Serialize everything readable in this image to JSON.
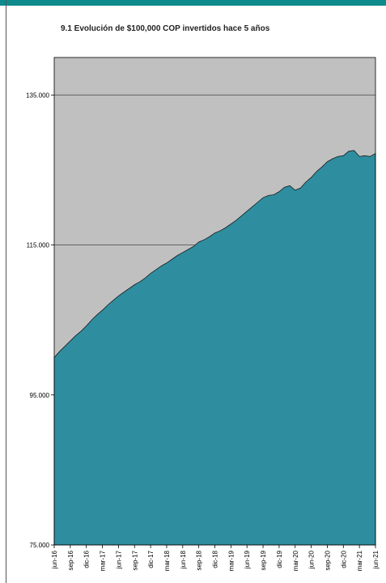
{
  "colors": {
    "top_bar": "#0d8a8c",
    "plot_background": "#c0c0c0",
    "area_fill": "#2e8ea0",
    "area_line": "#1a1a1a"
  },
  "chart_data": {
    "type": "area",
    "title": "9.1 Evolución de $100,000 COP invertidos hace 5 años",
    "xlabel": "",
    "ylabel": "",
    "ylim": [
      75000,
      140000
    ],
    "yticks": [
      75000,
      95000,
      115000,
      135000
    ],
    "ytick_labels": [
      "75.000",
      "95.000",
      "115.000",
      "135.000"
    ],
    "xtick_labels": [
      "jun-16",
      "sep-16",
      "dic-16",
      "mar-17",
      "jun-17",
      "sep-17",
      "dic-17",
      "mar-18",
      "jun-18",
      "sep-18",
      "dic-18",
      "mar-19",
      "jun-19",
      "sep-19",
      "dic-19",
      "mar-20",
      "jun-20",
      "sep-20",
      "dic-20",
      "mar-21",
      "jun-21"
    ],
    "grid": true,
    "legend": "none",
    "x": [
      "jun-16",
      "jul-16",
      "ago-16",
      "sep-16",
      "oct-16",
      "nov-16",
      "dic-16",
      "ene-17",
      "feb-17",
      "mar-17",
      "abr-17",
      "may-17",
      "jun-17",
      "jul-17",
      "ago-17",
      "sep-17",
      "oct-17",
      "nov-17",
      "dic-17",
      "ene-18",
      "feb-18",
      "mar-18",
      "abr-18",
      "may-18",
      "jun-18",
      "jul-18",
      "ago-18",
      "sep-18",
      "oct-18",
      "nov-18",
      "dic-18",
      "ene-19",
      "feb-19",
      "mar-19",
      "abr-19",
      "may-19",
      "jun-19",
      "jul-19",
      "ago-19",
      "sep-19",
      "oct-19",
      "nov-19",
      "dic-19",
      "ene-20",
      "feb-20",
      "mar-20",
      "abr-20",
      "may-20",
      "jun-20",
      "jul-20",
      "ago-20",
      "sep-20",
      "oct-20",
      "nov-20",
      "dic-20",
      "ene-21",
      "feb-21",
      "mar-21",
      "abr-21",
      "may-21",
      "jun-21"
    ],
    "series": [
      {
        "values": [
          100000,
          100800,
          101500,
          102200,
          102900,
          103500,
          104200,
          105000,
          105700,
          106300,
          107000,
          107600,
          108200,
          108700,
          109200,
          109700,
          110100,
          110600,
          111200,
          111700,
          112200,
          112600,
          113100,
          113600,
          114000,
          114400,
          114800,
          115400,
          115700,
          116100,
          116600,
          116900,
          117300,
          117800,
          118300,
          118900,
          119500,
          120100,
          120700,
          121300,
          121600,
          121700,
          122100,
          122700,
          122900,
          122300,
          122600,
          123400,
          124000,
          124800,
          125400,
          126100,
          126500,
          126800,
          126900,
          127500,
          127600,
          126800,
          126900,
          126800,
          127200
        ]
      }
    ]
  }
}
